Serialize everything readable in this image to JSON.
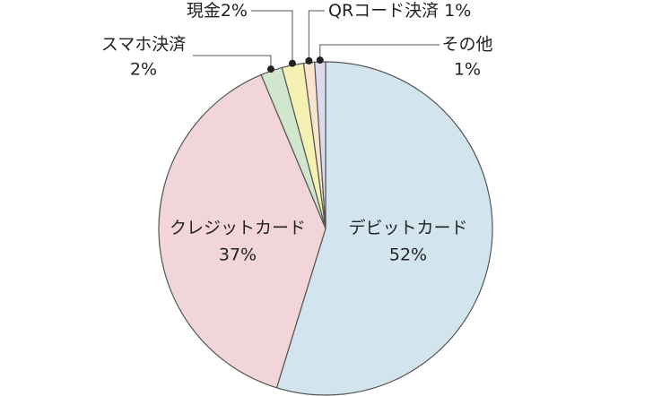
{
  "chart_data": {
    "type": "pie",
    "categories": [
      "デビットカード",
      "クレジットカード",
      "スマホ決済",
      "現金",
      "QRコード決済",
      "その他"
    ],
    "values": [
      52,
      37,
      2,
      2,
      1,
      1
    ],
    "value_labels": [
      "52%",
      "37%",
      "2%",
      "2%",
      "1%",
      "1%"
    ],
    "colors": [
      "#d2e5ee",
      "#f1d5d8",
      "#d0e7cd",
      "#f4f1b2",
      "#fbe4cd",
      "#dadcee"
    ]
  }
}
